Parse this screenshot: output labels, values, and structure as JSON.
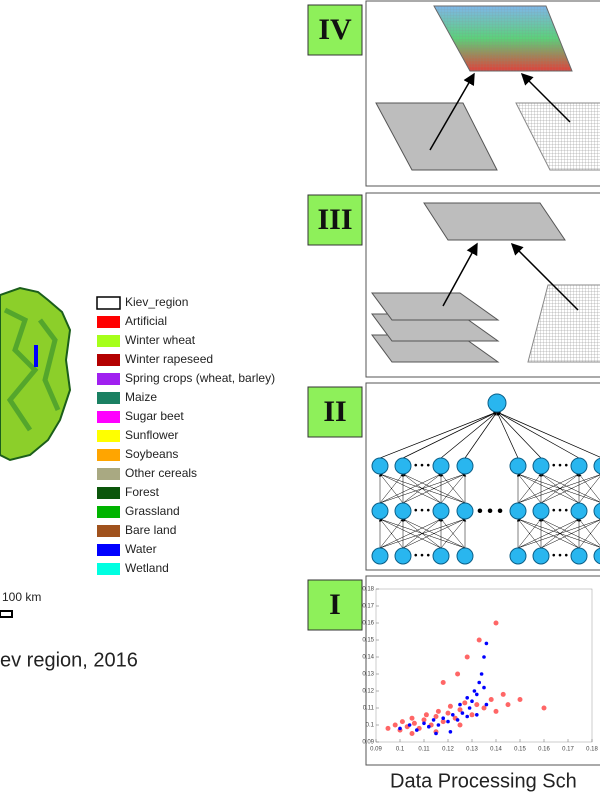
{
  "map": {
    "caption": "ev region, 2016",
    "scale": "100 km"
  },
  "legend": {
    "items": [
      {
        "label": "Kiev_region",
        "color": "#ffffff"
      },
      {
        "label": "Artificial",
        "color": "#ff0000"
      },
      {
        "label": "Winter wheat",
        "color": "#a6ff1a"
      },
      {
        "label": "Winter rapeseed",
        "color": "#b30000"
      },
      {
        "label": "Spring crops (wheat, barley)",
        "color": "#a020f0"
      },
      {
        "label": "Maize",
        "color": "#1a8062"
      },
      {
        "label": "Sugar beet",
        "color": "#ff00ff"
      },
      {
        "label": "Sunflower",
        "color": "#ffff00"
      },
      {
        "label": "Soybeans",
        "color": "#ffa500"
      },
      {
        "label": "Other cereals",
        "color": "#a9a982"
      },
      {
        "label": "Forest",
        "color": "#0b560b"
      },
      {
        "label": "Grassland",
        "color": "#00b400"
      },
      {
        "label": "Bare land",
        "color": "#a0521d"
      },
      {
        "label": "Water",
        "color": "#0000ff"
      },
      {
        "label": "Wetland",
        "color": "#00ffe1"
      }
    ]
  },
  "panels": [
    {
      "label": "IV"
    },
    {
      "label": "III"
    },
    {
      "label": "II"
    },
    {
      "label": "I"
    }
  ],
  "footer": "Data Processing Sch",
  "chart_data": {
    "type": "scatter",
    "xlim": [
      0.09,
      0.18
    ],
    "ylim": [
      0.09,
      0.18
    ],
    "xticks": [
      0.09,
      0.1,
      0.11,
      0.12,
      0.13,
      0.14,
      0.15,
      0.16,
      0.17,
      0.18
    ],
    "yticks": [
      0.09,
      0.1,
      0.11,
      0.12,
      0.13,
      0.14,
      0.15,
      0.16,
      0.17,
      0.18
    ],
    "series": [
      {
        "color": "#ff0000",
        "x": [
          0.095,
          0.098,
          0.1,
          0.101,
          0.103,
          0.105,
          0.106,
          0.108,
          0.11,
          0.111,
          0.113,
          0.115,
          0.116,
          0.118,
          0.12,
          0.121,
          0.123,
          0.125,
          0.127,
          0.13,
          0.132,
          0.135,
          0.138,
          0.14,
          0.143,
          0.145,
          0.15,
          0.105,
          0.115,
          0.125,
          0.118,
          0.124,
          0.128,
          0.133,
          0.14,
          0.16
        ],
        "y": [
          0.098,
          0.1,
          0.097,
          0.102,
          0.099,
          0.104,
          0.101,
          0.098,
          0.103,
          0.106,
          0.1,
          0.105,
          0.108,
          0.102,
          0.107,
          0.111,
          0.104,
          0.109,
          0.113,
          0.106,
          0.112,
          0.11,
          0.115,
          0.108,
          0.118,
          0.112,
          0.115,
          0.095,
          0.096,
          0.1,
          0.125,
          0.13,
          0.14,
          0.15,
          0.16,
          0.11
        ]
      },
      {
        "color": "#0000ff",
        "x": [
          0.1,
          0.104,
          0.107,
          0.11,
          0.112,
          0.114,
          0.116,
          0.118,
          0.12,
          0.122,
          0.124,
          0.126,
          0.128,
          0.129,
          0.13,
          0.131,
          0.132,
          0.133,
          0.134,
          0.135,
          0.135,
          0.136,
          0.136,
          0.128,
          0.125,
          0.132,
          0.121,
          0.115
        ],
        "y": [
          0.098,
          0.1,
          0.097,
          0.101,
          0.099,
          0.103,
          0.1,
          0.104,
          0.102,
          0.106,
          0.103,
          0.107,
          0.105,
          0.11,
          0.114,
          0.12,
          0.118,
          0.125,
          0.13,
          0.122,
          0.14,
          0.112,
          0.148,
          0.116,
          0.112,
          0.106,
          0.096,
          0.095
        ]
      }
    ]
  }
}
